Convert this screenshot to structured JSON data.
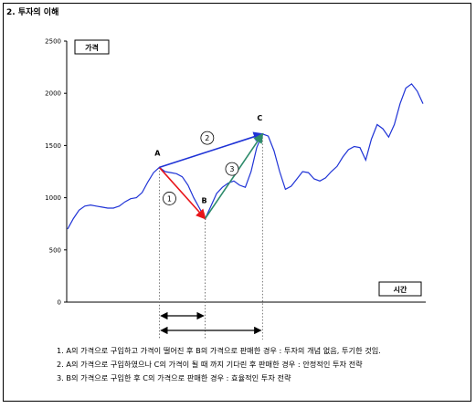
{
  "figure_title": "2. 투자의 이해",
  "chart_data": {
    "type": "line",
    "ylabel": "가격",
    "xlabel": "시간",
    "ylim": [
      0,
      2500
    ],
    "yticks": [
      0,
      500,
      1000,
      1500,
      2000,
      2500
    ],
    "grid": false,
    "series": [
      {
        "values": [
          [
            0,
            700
          ],
          [
            1,
            800
          ],
          [
            2,
            880
          ],
          [
            3,
            920
          ],
          [
            4,
            930
          ],
          [
            5,
            920
          ],
          [
            6,
            910
          ],
          [
            7,
            900
          ],
          [
            8,
            900
          ],
          [
            9,
            920
          ],
          [
            10,
            960
          ],
          [
            11,
            990
          ],
          [
            12,
            1000
          ],
          [
            13,
            1050
          ],
          [
            14,
            1150
          ],
          [
            15,
            1240
          ],
          [
            16,
            1290
          ],
          [
            17,
            1250
          ],
          [
            18,
            1240
          ],
          [
            19,
            1230
          ],
          [
            20,
            1200
          ],
          [
            21,
            1120
          ],
          [
            22,
            1000
          ],
          [
            23,
            900
          ],
          [
            24,
            800
          ],
          [
            25,
            920
          ],
          [
            26,
            1040
          ],
          [
            27,
            1100
          ],
          [
            28,
            1140
          ],
          [
            29,
            1160
          ],
          [
            30,
            1120
          ],
          [
            31,
            1100
          ],
          [
            32,
            1250
          ],
          [
            33,
            1480
          ],
          [
            34,
            1610
          ],
          [
            35,
            1590
          ],
          [
            36,
            1450
          ],
          [
            37,
            1250
          ],
          [
            38,
            1080
          ],
          [
            39,
            1110
          ],
          [
            40,
            1180
          ],
          [
            41,
            1250
          ],
          [
            42,
            1240
          ],
          [
            43,
            1180
          ],
          [
            44,
            1160
          ],
          [
            45,
            1190
          ],
          [
            46,
            1250
          ],
          [
            47,
            1300
          ],
          [
            48,
            1390
          ],
          [
            49,
            1460
          ],
          [
            50,
            1490
          ],
          [
            51,
            1480
          ],
          [
            52,
            1360
          ],
          [
            53,
            1560
          ],
          [
            54,
            1700
          ],
          [
            55,
            1660
          ],
          [
            56,
            1580
          ],
          [
            57,
            1700
          ],
          [
            58,
            1900
          ],
          [
            59,
            2050
          ],
          [
            60,
            2090
          ],
          [
            61,
            2020
          ],
          [
            62,
            1900
          ]
        ]
      }
    ],
    "points": [
      {
        "label": "A",
        "x": 16,
        "y": 1290
      },
      {
        "label": "B",
        "x": 24,
        "y": 800
      },
      {
        "label": "C",
        "x": 34,
        "y": 1610
      }
    ],
    "arrows": [
      {
        "label": "①",
        "from": "A",
        "to": "B",
        "color": "#e8151a"
      },
      {
        "label": "②",
        "from": "A",
        "to": "C",
        "color": "#1f33d6"
      },
      {
        "label": "③",
        "from": "B",
        "to": "C",
        "color": "#2e8b6b"
      }
    ],
    "duration_arrows": [
      {
        "from": "A",
        "to": "B"
      },
      {
        "from": "A",
        "to": "C"
      }
    ]
  },
  "notes": [
    "1. A의 가격으로 구입하고 가격이 떨어진 후 B의 가격으로 판매한 경우 : 투자의 개념 없음, 투기한 것임.",
    "2. A의 가격으로 구입하였으나 C의 가격이 될 때 까지 기다린 후 판매한 경우 : 안정적인 투자 전략",
    "3. B의 가격으로 구입한 후 C의 가격으로 판매한 경우 : 효율적인 투자 전략"
  ]
}
